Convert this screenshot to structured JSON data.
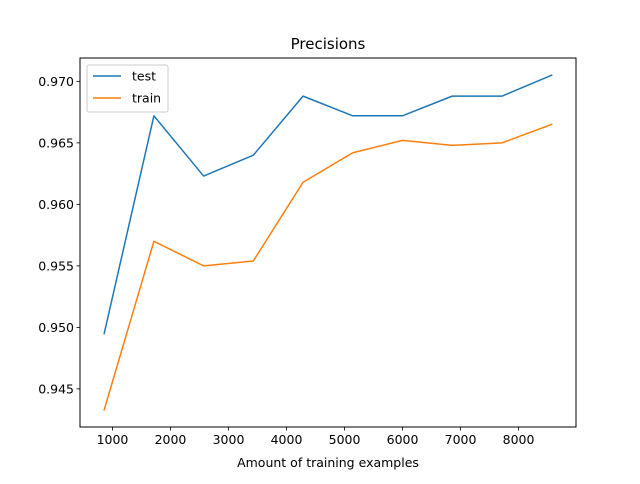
{
  "chart_data": {
    "type": "line",
    "title": "Precisions",
    "xlabel": "Amount of training examples",
    "ylabel": "",
    "xlim": [
      440,
      8990
    ],
    "ylim": [
      0.9419,
      0.9719
    ],
    "xticks": [
      1000,
      2000,
      3000,
      4000,
      5000,
      6000,
      7000,
      8000
    ],
    "yticks": [
      0.945,
      0.95,
      0.955,
      0.96,
      0.965,
      0.97
    ],
    "x": [
      857,
      1714,
      2571,
      3428,
      4285,
      5142,
      5999,
      6856,
      7713,
      8570
    ],
    "series": [
      {
        "name": "test",
        "color": "#1f77b4",
        "values": [
          0.9495,
          0.9672,
          0.9623,
          0.964,
          0.9688,
          0.9672,
          0.9672,
          0.9688,
          0.9688,
          0.9705
        ]
      },
      {
        "name": "train",
        "color": "#ff7f0e",
        "values": [
          0.9433,
          0.957,
          0.955,
          0.9554,
          0.9618,
          0.9642,
          0.9652,
          0.9648,
          0.965,
          0.9665
        ]
      }
    ],
    "grid": false,
    "legend_position": "top-left"
  }
}
